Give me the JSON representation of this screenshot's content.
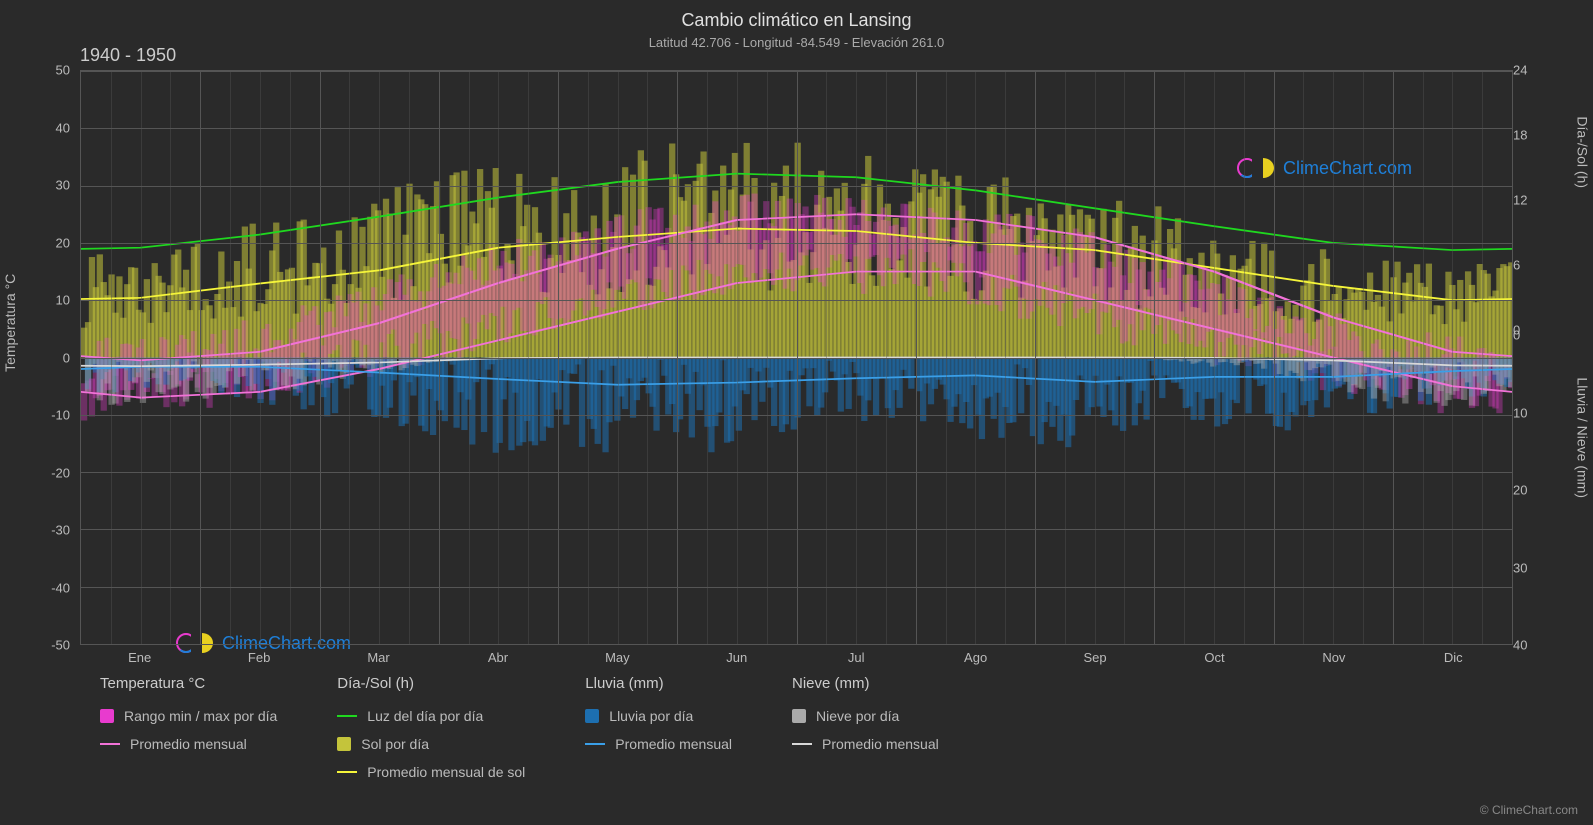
{
  "title": "Cambio climático en Lansing",
  "subtitle": "Latitud 42.706 - Longitud -84.549 - Elevación 261.0",
  "year_range": "1940 - 1950",
  "axis_left_label": "Temperatura °C",
  "axis_right1_label": "Día-/Sol (h)",
  "axis_right2_label": "Lluvia / Nieve (mm)",
  "watermark_text": "ClimeChart.com",
  "copyright": "© ClimeChart.com",
  "colors": {
    "bg": "#2a2a2a",
    "grid": "#555555",
    "text": "#bbbbbb",
    "temp_range": "#e83bce",
    "temp_avg": "#f272d8",
    "daylight": "#1fd81f",
    "sun_fill": "#c4c43b",
    "sun_avg": "#f5f53a",
    "rain_fill": "#1d6fb0",
    "rain_avg": "#3a9fe8",
    "snow_fill": "#aaaaaa",
    "snow_avg": "#d8d8d8",
    "watermark": "#1e7fd8"
  },
  "y_left": {
    "min": -50,
    "max": 50,
    "ticks": [
      -50,
      -40,
      -30,
      -20,
      -10,
      0,
      10,
      20,
      30,
      40,
      50
    ]
  },
  "y_right1": {
    "min": 0,
    "max": 24,
    "ticks": [
      0,
      6,
      12,
      18,
      24
    ]
  },
  "y_right2": {
    "min": 0,
    "max": 40,
    "ticks": [
      0,
      10,
      20,
      30,
      40
    ]
  },
  "months": [
    "Ene",
    "Feb",
    "Mar",
    "Abr",
    "May",
    "Jun",
    "Jul",
    "Ago",
    "Sep",
    "Oct",
    "Nov",
    "Dic"
  ],
  "series": {
    "daylight_monthly": [
      9.2,
      10.3,
      11.8,
      13.4,
      14.7,
      15.4,
      15.1,
      14.0,
      12.5,
      11.0,
      9.6,
      9.0
    ],
    "sun_avg_monthly": [
      5.0,
      6.2,
      7.3,
      9.2,
      10.1,
      10.8,
      10.6,
      9.6,
      9.0,
      7.5,
      6.0,
      4.8
    ],
    "temp_max_monthly": [
      -0.5,
      1,
      6,
      13,
      19,
      24,
      25,
      24,
      21,
      15,
      7,
      1
    ],
    "temp_min_monthly": [
      -7,
      -6,
      -2,
      3,
      8,
      13,
      15,
      15,
      10,
      5,
      0,
      -5
    ],
    "rain_avg_monthly": [
      1.3,
      1.3,
      2.1,
      3.0,
      3.8,
      3.5,
      2.9,
      2.5,
      3.4,
      2.7,
      2.7,
      1.9
    ],
    "snow_avg_monthly": [
      1.2,
      1.0,
      0.7,
      0.1,
      0,
      0,
      0,
      0,
      0,
      0.05,
      0.4,
      1.1
    ]
  },
  "legend": {
    "temp": {
      "title": "Temperatura °C",
      "range": "Rango min / max por día",
      "avg": "Promedio mensual"
    },
    "daysun": {
      "title": "Día-/Sol (h)",
      "daylight": "Luz del día por día",
      "sun": "Sol por día",
      "sunavg": "Promedio mensual de sol"
    },
    "rain": {
      "title": "Lluvia (mm)",
      "daily": "Lluvia por día",
      "avg": "Promedio mensual"
    },
    "snow": {
      "title": "Nieve (mm)",
      "daily": "Nieve por día",
      "avg": "Promedio mensual"
    }
  }
}
